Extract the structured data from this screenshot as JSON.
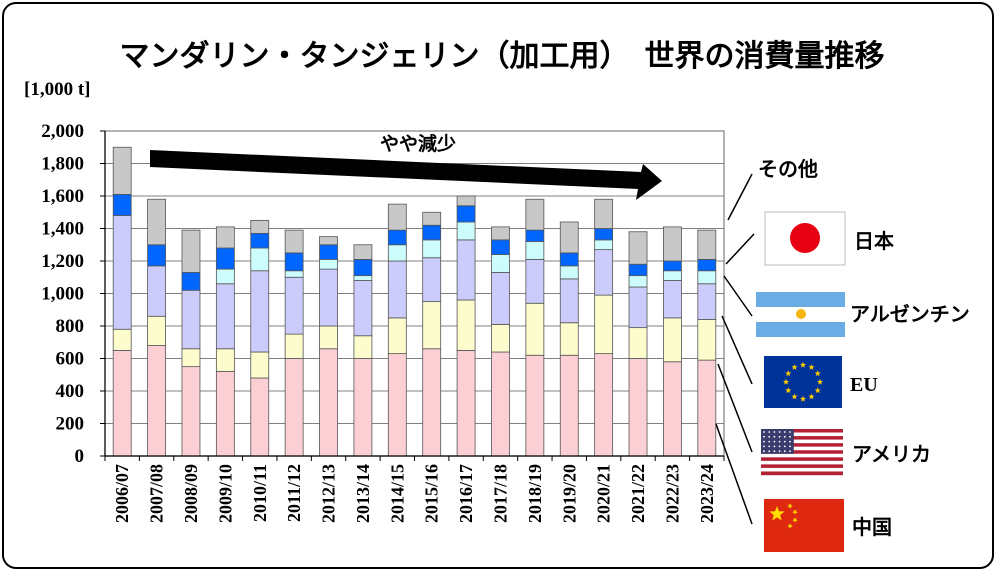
{
  "chart_data": {
    "type": "bar",
    "stacked": true,
    "title": "マンダリン・タンジェリン（加工用）　世界の消費量推移",
    "unit_label": "[1,000 t]",
    "ylim": [
      0,
      2000
    ],
    "yticks": [
      0,
      200,
      400,
      600,
      800,
      1000,
      1200,
      1400,
      1600,
      1800,
      2000
    ],
    "ytick_labels": [
      "0",
      "200",
      "400",
      "600",
      "800",
      "1,000",
      "1,200",
      "1,400",
      "1,600",
      "1,800",
      "2,000"
    ],
    "grid": true,
    "categories": [
      "2006/07",
      "2007/08",
      "2008/09",
      "2009/10",
      "2010/11",
      "2011/12",
      "2012/13",
      "2013/14",
      "2014/15",
      "2015/16",
      "2016/17",
      "2017/18",
      "2018/19",
      "2019/20",
      "2020/21",
      "2021/22",
      "2022/23",
      "2023/24"
    ],
    "series": [
      {
        "name": "中国",
        "color": "#fccfd4",
        "values": [
          650,
          680,
          550,
          520,
          480,
          600,
          660,
          600,
          630,
          660,
          650,
          640,
          620,
          620,
          630,
          600,
          580,
          590
        ]
      },
      {
        "name": "アメリカ",
        "color": "#fdfccc",
        "values": [
          130,
          180,
          110,
          140,
          160,
          150,
          140,
          140,
          220,
          290,
          310,
          170,
          320,
          200,
          360,
          190,
          270,
          250
        ]
      },
      {
        "name": "EU",
        "color": "#ccccfc",
        "values": [
          700,
          310,
          360,
          400,
          500,
          350,
          350,
          340,
          350,
          270,
          370,
          320,
          270,
          270,
          280,
          250,
          230,
          220
        ]
      },
      {
        "name": "アルゼンチン",
        "color": "#ccfcfc",
        "values": [
          0,
          0,
          0,
          90,
          140,
          40,
          60,
          30,
          100,
          110,
          110,
          110,
          110,
          80,
          60,
          70,
          60,
          80
        ]
      },
      {
        "name": "日本",
        "color": "#0066ff",
        "values": [
          130,
          130,
          110,
          130,
          90,
          110,
          90,
          100,
          90,
          90,
          100,
          90,
          70,
          80,
          70,
          70,
          60,
          70
        ]
      },
      {
        "name": "その他",
        "color": "#c8c8c8",
        "values": [
          290,
          280,
          260,
          130,
          80,
          140,
          50,
          90,
          160,
          80,
          60,
          80,
          190,
          190,
          180,
          200,
          210,
          180
        ]
      }
    ],
    "annotation": "やや減少",
    "legend_order": [
      "その他",
      "日本",
      "アルゼンチン",
      "EU",
      "アメリカ",
      "中国"
    ]
  },
  "flags": {
    "japan": {
      "bg": "#ffffff",
      "disc": "#e60012"
    },
    "argentina": {
      "band": "#6cace4",
      "middle": "#ffffff",
      "sun": "#f6b40e"
    },
    "eu": {
      "bg": "#003399",
      "stars": "#ffcc00"
    },
    "usa": {
      "red": "#b22234",
      "white": "#ffffff",
      "canton": "#3c3b6e"
    },
    "china": {
      "bg": "#de2910",
      "stars": "#ffde00"
    }
  }
}
